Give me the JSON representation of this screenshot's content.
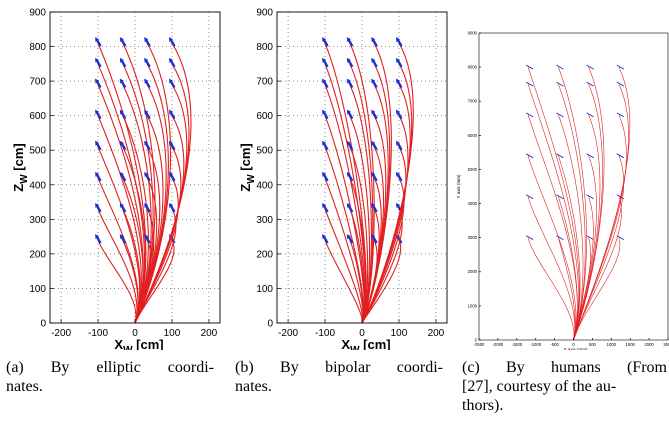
{
  "chart_data": [
    {
      "type": "line",
      "panel": "a",
      "xlabel": "X",
      "xlabel_sub": "W",
      "xlabel_unit": " [cm]",
      "ylabel": "Z",
      "ylabel_sub": "W",
      "ylabel_unit": " [cm]",
      "xlim": [
        -230,
        230
      ],
      "ylim": [
        0,
        900
      ],
      "xticks": [
        -200,
        -100,
        0,
        100,
        200
      ],
      "yticks": [
        0,
        100,
        200,
        300,
        400,
        500,
        600,
        700,
        800,
        900
      ],
      "grid": true,
      "origin": [
        0,
        0
      ],
      "start_x": [
        -100,
        -33,
        33,
        100
      ],
      "start_z": [
        240,
        330,
        420,
        510,
        600,
        690,
        750,
        810
      ],
      "line_color": "#e02020",
      "arrow_color": "#1f2fd0"
    },
    {
      "type": "line",
      "panel": "b",
      "xlabel": "X",
      "xlabel_sub": "W",
      "xlabel_unit": " [cm]",
      "ylabel": "Z",
      "ylabel_sub": "W",
      "ylabel_unit": " [cm]",
      "xlim": [
        -230,
        230
      ],
      "ylim": [
        0,
        900
      ],
      "xticks": [
        -200,
        -100,
        0,
        100,
        200
      ],
      "yticks": [
        0,
        100,
        200,
        300,
        400,
        500,
        600,
        700,
        800,
        900
      ],
      "grid": true,
      "origin": [
        0,
        0
      ],
      "start_x": [
        -100,
        -33,
        33,
        100
      ],
      "start_z": [
        240,
        330,
        420,
        510,
        600,
        690,
        750,
        810
      ],
      "line_color": "#e02020",
      "arrow_color": "#1f2fd0"
    },
    {
      "type": "line",
      "panel": "c",
      "xlabel": "X axis (mm)",
      "ylabel": "Y axis (mm)",
      "xlim": [
        -2500,
        2500
      ],
      "ylim": [
        0,
        9000
      ],
      "xticks": [
        -2500,
        -2000,
        -1500,
        -1000,
        -500,
        0,
        500,
        1000,
        1500,
        2000,
        2500
      ],
      "yticks": [
        0,
        1000,
        2000,
        3000,
        4000,
        5000,
        6000,
        7000,
        8000,
        9000
      ],
      "grid": false,
      "origin": [
        0,
        0
      ],
      "start_x": [
        -1200,
        -400,
        400,
        1200
      ],
      "start_y": [
        3000,
        4200,
        5400,
        6600,
        7500,
        8000
      ],
      "line_color": "#e02020",
      "arrow_color": "#1f2fd0"
    }
  ],
  "captions": [
    {
      "line1": "(a) By elliptic coordi-",
      "rest": [
        "nates."
      ]
    },
    {
      "line1": "(b) By bipolar coordi-",
      "rest": [
        "nates."
      ]
    },
    {
      "line1": "(c) By humans (From",
      "rest": [
        "[27], courtesy of the au-",
        "thors)."
      ]
    }
  ]
}
